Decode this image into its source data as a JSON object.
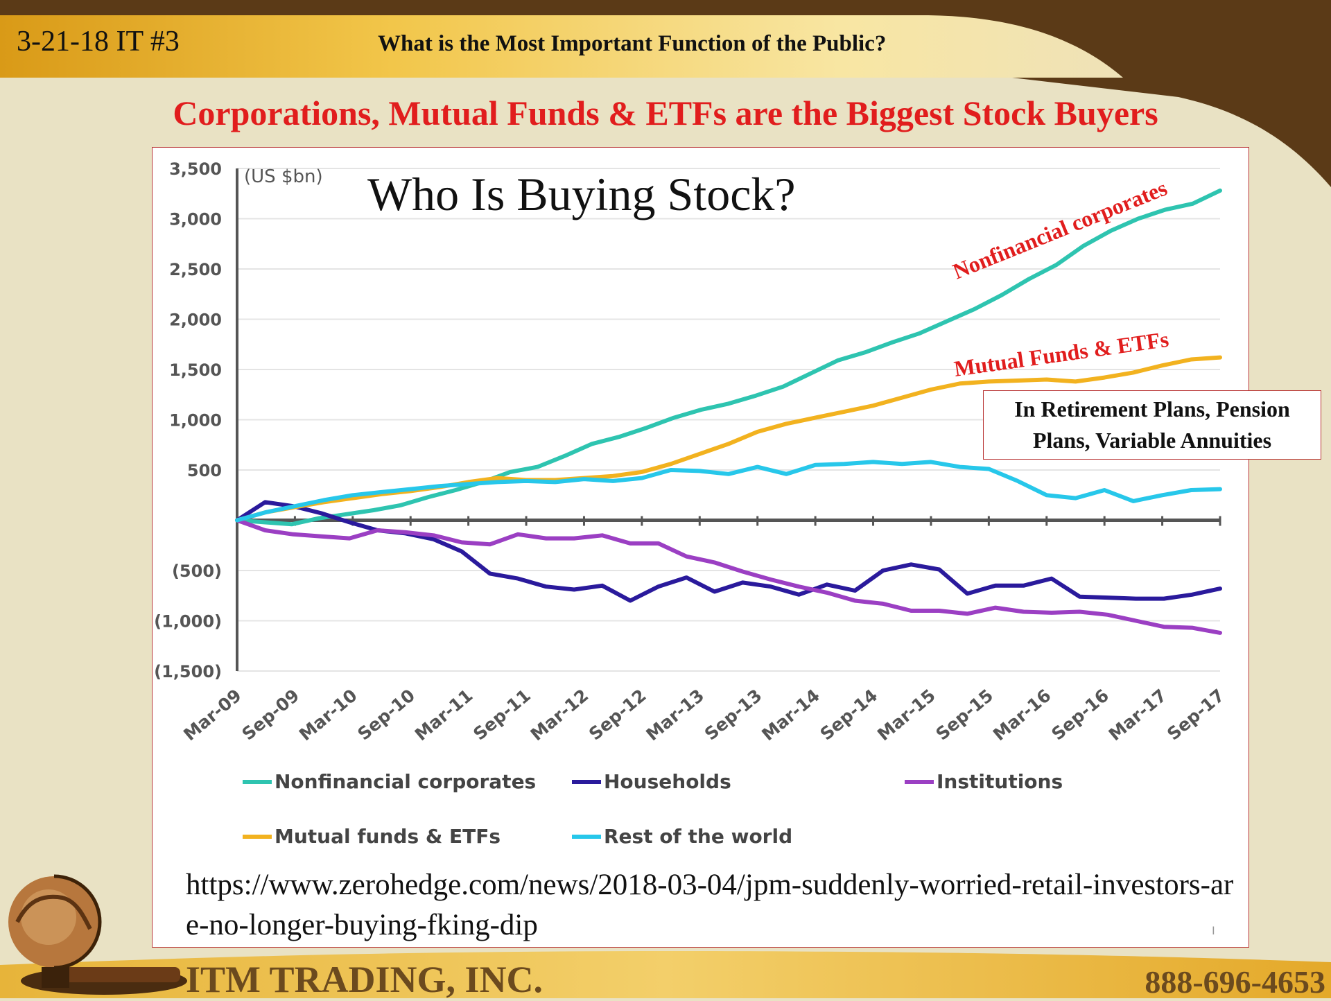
{
  "header": {
    "slide_id": "3-21-18 IT #3",
    "title": "What is the Most Important  Function of the Public?"
  },
  "headline": "Corporations, Mutual Funds & ETFs are the Biggest Stock Buyers",
  "callout": {
    "line1": "In Retirement  Plans, Pension",
    "line2": "Plans, Variable Annuities"
  },
  "source": {
    "url": "https://www.zerohedge.com/news/2018-03-04/jpm-suddenly-worried-retail-investors-are-no-longer-buying-fking-dip"
  },
  "footer": {
    "company": "ITM TRADING, INC.",
    "phone": "888-696-4653"
  },
  "colors": {
    "headline": "#e11d1d",
    "footer_text": "#6b4a1e",
    "background": "#e9e2c4",
    "band_dark": "#5b3a17",
    "band_gold": "#e2a91f"
  },
  "chart_data": {
    "type": "line",
    "title": "Who Is Buying Stock?",
    "unit_label": "(US $bn)",
    "ylim": [
      -1500,
      3500
    ],
    "y_ticks": [
      {
        "value": 3500,
        "label": "3,500"
      },
      {
        "value": 3000,
        "label": "3,000"
      },
      {
        "value": 2500,
        "label": "2,500"
      },
      {
        "value": 2000,
        "label": "2,000"
      },
      {
        "value": 1500,
        "label": "1,500"
      },
      {
        "value": 1000,
        "label": "1,000"
      },
      {
        "value": 500,
        "label": "500"
      },
      {
        "value": -500,
        "label": "(500)"
      },
      {
        "value": -1000,
        "label": "(1,000)"
      },
      {
        "value": -1500,
        "label": "(1,500)"
      }
    ],
    "x_labels": [
      "Mar-09",
      "Sep-09",
      "Mar-10",
      "Sep-10",
      "Mar-11",
      "Sep-11",
      "Mar-12",
      "Sep-12",
      "Mar-13",
      "Sep-13",
      "Mar-14",
      "Sep-14",
      "Mar-15",
      "Sep-15",
      "Mar-16",
      "Sep-16",
      "Mar-17",
      "Sep-17"
    ],
    "grid": true,
    "legend_position": "bottom",
    "series": [
      {
        "name": "Nonfinancial corporates",
        "color": "#2ec4b0",
        "values": [
          0,
          -20,
          -40,
          20,
          60,
          100,
          150,
          230,
          300,
          380,
          480,
          530,
          640,
          760,
          830,
          920,
          1020,
          1100,
          1160,
          1240,
          1330,
          1460,
          1590,
          1670,
          1770,
          1860,
          1980,
          2100,
          2240,
          2400,
          2540,
          2730,
          2880,
          3000,
          3090,
          3150,
          3280
        ]
      },
      {
        "name": "Households",
        "color": "#2a1a9c",
        "values": [
          0,
          180,
          140,
          70,
          -20,
          -100,
          -130,
          -190,
          -310,
          -530,
          -580,
          -660,
          -690,
          -650,
          -800,
          -660,
          -570,
          -710,
          -620,
          -660,
          -740,
          -640,
          -700,
          -500,
          -440,
          -490,
          -730,
          -650,
          -650,
          -580,
          -760,
          -770,
          -780,
          -780,
          -740,
          -680
        ]
      },
      {
        "name": "Institutions",
        "color": "#9b3fc3",
        "values": [
          0,
          -100,
          -140,
          -160,
          -180,
          -100,
          -120,
          -150,
          -220,
          -240,
          -140,
          -180,
          -180,
          -150,
          -230,
          -230,
          -360,
          -420,
          -510,
          -590,
          -660,
          -720,
          -800,
          -830,
          -900,
          -900,
          -930,
          -870,
          -910,
          -920,
          -910,
          -940,
          -1000,
          -1060,
          -1070,
          -1120
        ]
      },
      {
        "name": "Mutual funds & ETFs",
        "color": "#f2b21f",
        "values": [
          0,
          80,
          130,
          180,
          220,
          260,
          290,
          330,
          380,
          420,
          400,
          400,
          420,
          440,
          480,
          560,
          660,
          760,
          880,
          960,
          1020,
          1080,
          1140,
          1220,
          1300,
          1360,
          1380,
          1390,
          1400,
          1380,
          1420,
          1470,
          1540,
          1600,
          1620
        ]
      },
      {
        "name": "Rest of the world",
        "color": "#27c7ea",
        "values": [
          0,
          80,
          140,
          200,
          250,
          280,
          310,
          340,
          360,
          380,
          390,
          380,
          410,
          390,
          420,
          500,
          490,
          460,
          530,
          460,
          550,
          560,
          580,
          560,
          580,
          530,
          510,
          390,
          250,
          220,
          300,
          190,
          250,
          300,
          310
        ]
      }
    ],
    "annotations": [
      {
        "text": "Nonfinancial corporates",
        "color": "#e11d1d"
      },
      {
        "text": "Mutual Funds & ETFs",
        "color": "#e11d1d"
      }
    ],
    "page_marker": "I"
  }
}
